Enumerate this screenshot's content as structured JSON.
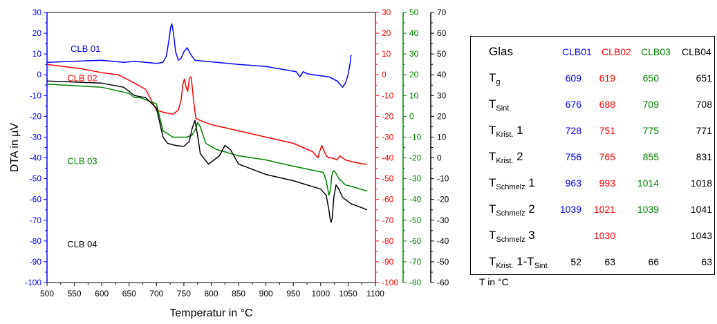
{
  "chart_data": {
    "type": "line",
    "xlabel": "Temperatur in °C",
    "ylabel": "DTA in µV",
    "xlim": [
      500,
      1100
    ],
    "x_ticks": [
      "500",
      "550",
      "600",
      "650",
      "700",
      "750",
      "800",
      "850",
      "900",
      "950",
      "1000",
      "1050",
      "1100"
    ],
    "y_axes": [
      {
        "id": "left",
        "color": "#0000ff",
        "ylim": [
          -100,
          30
        ],
        "ticks": [
          "30",
          "20",
          "10",
          "0",
          "-10",
          "-20",
          "-30",
          "-40",
          "-50",
          "-60",
          "-70",
          "-80",
          "-90",
          "-100"
        ]
      },
      {
        "id": "red",
        "color": "#ff0000",
        "ylim": [
          -100,
          30
        ],
        "ticks": [
          "30",
          "20",
          "10",
          "0",
          "-10",
          "-20",
          "-30",
          "-40",
          "-50",
          "-60",
          "-70",
          "-80",
          "-90",
          "-100"
        ]
      },
      {
        "id": "green",
        "color": "#008000",
        "ylim": [
          -80,
          50
        ],
        "ticks": [
          "50",
          "40",
          "30",
          "20",
          "10",
          "0",
          "-10",
          "-20",
          "-30",
          "-40",
          "-50",
          "-60",
          "-70",
          "-80"
        ]
      },
      {
        "id": "black",
        "color": "#000000",
        "ylim": [
          -60,
          70
        ],
        "ticks": [
          "70",
          "60",
          "50",
          "40",
          "30",
          "20",
          "10",
          "0",
          "-10",
          "-20",
          "-30",
          "-40",
          "-50",
          "-60"
        ]
      }
    ],
    "series": [
      {
        "name": "CLB 01",
        "color": "#0000ff",
        "axis": "left",
        "x": [
          500,
          550,
          600,
          640,
          660,
          700,
          712,
          718,
          723,
          726,
          728,
          731,
          735,
          740,
          745,
          750,
          756,
          762,
          770,
          790,
          850,
          900,
          955,
          962,
          968,
          975,
          1000,
          1015,
          1030,
          1040,
          1045,
          1050,
          1052,
          1054,
          1055,
          1056
        ],
        "y": [
          6,
          6.5,
          7,
          6,
          6.5,
          5.5,
          6,
          9,
          17,
          23,
          24.5,
          20,
          11,
          7,
          8,
          11,
          13,
          10,
          7,
          6.5,
          5,
          4,
          1.5,
          -1,
          1.5,
          0.5,
          -0.5,
          -1,
          -3,
          -6,
          -4,
          0,
          3,
          6,
          9,
          9.5
        ]
      },
      {
        "name": "CLB 02",
        "color": "#ff0000",
        "axis": "red",
        "x": [
          500,
          560,
          600,
          630,
          645,
          660,
          680,
          690,
          700,
          712,
          730,
          740,
          745,
          748,
          751,
          754,
          757,
          760,
          763,
          765,
          768,
          772,
          780,
          800,
          850,
          900,
          950,
          985,
          995,
          998,
          1002,
          1005,
          1010,
          1015,
          1020,
          1030,
          1035,
          1040,
          1045,
          1060,
          1080,
          1085
        ],
        "y": [
          5,
          3,
          1,
          0,
          -2,
          -4,
          -7,
          -12,
          -17,
          -18,
          -19,
          -17,
          -12,
          -5,
          -2,
          -6,
          -8,
          -2,
          -1,
          -5,
          -13,
          -21,
          -22,
          -24,
          -27,
          -30,
          -33,
          -37,
          -40,
          -37,
          -34,
          -36,
          -39,
          -40,
          -40,
          -41,
          -39,
          -40,
          -41,
          -42,
          -43,
          -43
        ]
      },
      {
        "name": "CLB 03",
        "color": "#008000",
        "axis": "green",
        "x": [
          500,
          600,
          650,
          660,
          670,
          690,
          700,
          712,
          730,
          755,
          765,
          772,
          775,
          780,
          790,
          810,
          850,
          900,
          950,
          1005,
          1010,
          1013,
          1015,
          1018,
          1020,
          1023,
          1027,
          1033,
          1045,
          1060,
          1085
        ],
        "y": [
          15.5,
          14,
          11,
          9,
          9,
          7,
          6,
          -7,
          -10,
          -10,
          -9,
          -6,
          -3,
          -5,
          -13,
          -16,
          -19,
          -21,
          -24,
          -27,
          -31,
          -35,
          -38,
          -35,
          -29,
          -26,
          -27,
          -30,
          -33,
          -34,
          -36
        ]
      },
      {
        "name": "CLB 04",
        "color": "#000000",
        "axis": "black",
        "x": [
          500,
          550,
          600,
          640,
          660,
          680,
          700,
          712,
          720,
          735,
          750,
          760,
          765,
          770,
          775,
          780,
          795,
          815,
          825,
          835,
          850,
          900,
          950,
          1000,
          1010,
          1015,
          1017,
          1019,
          1021,
          1024,
          1028,
          1033,
          1040,
          1055,
          1065,
          1085
        ],
        "y": [
          37,
          36.5,
          36,
          34,
          30,
          29,
          24,
          10,
          7,
          6,
          5.5,
          8,
          14,
          18,
          11,
          2,
          -3,
          1,
          6,
          4,
          -3,
          -8,
          -11,
          -15,
          -18,
          -25,
          -29,
          -31,
          -29,
          -19,
          -13,
          -15,
          -19,
          -22,
          -23,
          -25
        ]
      }
    ],
    "annotations": [
      {
        "text": "CLB 01",
        "color": "#0000ff",
        "x": 543,
        "y": 11
      },
      {
        "text": "CLB 02",
        "color": "#ff0000",
        "x": 537,
        "y": -3
      },
      {
        "text": "CLB 03",
        "color": "#008000",
        "x": 537,
        "y": -23
      },
      {
        "text": "CLB 04",
        "color": "#000000",
        "x": 537,
        "y": -43
      }
    ]
  },
  "table": {
    "header": {
      "label": "Glas",
      "cols": [
        "CLB01",
        "CLB02",
        "CLB03",
        "CLB04"
      ]
    },
    "col_colors": [
      "#0000ff",
      "#ff0000",
      "#008000",
      "#000000"
    ],
    "rows": [
      {
        "main": "T",
        "sub": "g",
        "suffix": "",
        "values": [
          "609",
          "619",
          "650",
          "651"
        ]
      },
      {
        "main": "T",
        "sub": "Sint",
        "suffix": "",
        "values": [
          "676",
          "688",
          "709",
          "708"
        ]
      },
      {
        "main": "T",
        "sub": "Krist.",
        "suffix": " 1",
        "values": [
          "728",
          "751",
          "775",
          "771"
        ]
      },
      {
        "main": "T",
        "sub": "Krist.",
        "suffix": " 2",
        "values": [
          "756",
          "765",
          "855",
          "831"
        ]
      },
      {
        "main": "T",
        "sub": "Schmelz",
        "suffix": " 1",
        "values": [
          "963",
          "993",
          "1014",
          "1018"
        ]
      },
      {
        "main": "T",
        "sub": "Schmelz",
        "suffix": " 2",
        "values": [
          "1039",
          "1021",
          "1039",
          "1041"
        ]
      },
      {
        "main": "T",
        "sub": "Schmelz",
        "suffix": " 3",
        "values": [
          "",
          "1030",
          "",
          "1043"
        ]
      },
      {
        "main": "T",
        "sub": "Krist.",
        "suffix": " 1-T",
        "sub2": "Sint",
        "values": [
          "52",
          "63",
          "66",
          "63"
        ],
        "black": true
      }
    ],
    "note": "T in °C"
  }
}
